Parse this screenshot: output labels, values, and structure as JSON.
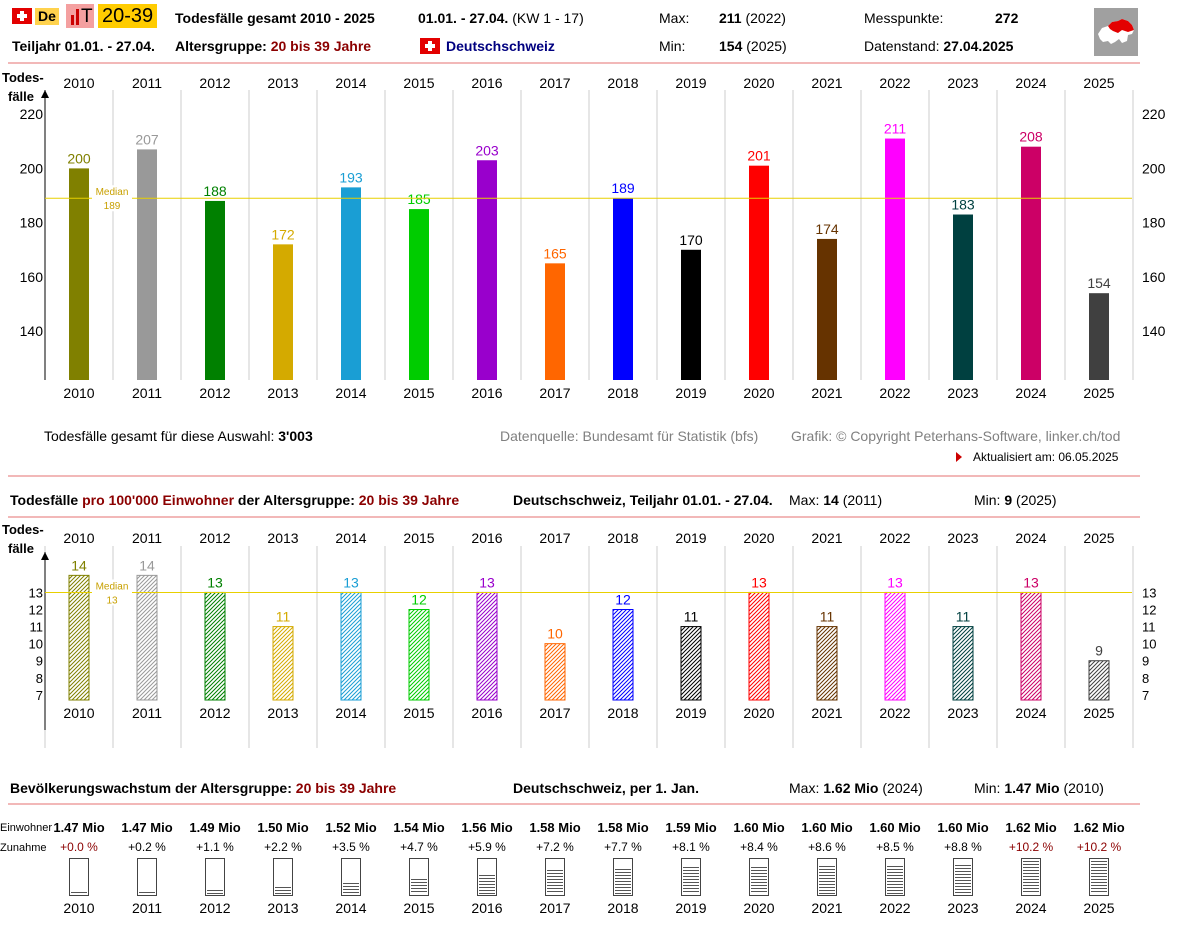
{
  "header": {
    "lang": "De",
    "age_badge": "20-39",
    "title": "Todesfälle gesamt 2010 - 2025",
    "period": "01.01. - 27.04.",
    "kw": "(KW 1 - 17)",
    "max_label": "Max:",
    "max_value": "211",
    "max_year": "(2022)",
    "messpunkte_label": "Messpunkte:",
    "messpunkte_value": "272",
    "teiljahr": "Teiljahr 01.01. - 27.04.",
    "altersgruppe_label": "Altersgruppe:",
    "altersgruppe_value": "20 bis 39 Jahre",
    "region": "Deutschschweiz",
    "min_label": "Min:",
    "min_value": "154",
    "min_year": "(2025)",
    "datenstand_label": "Datenstand:",
    "datenstand_value": "27.04.2025"
  },
  "footer1": {
    "total_label": "Todesfälle gesamt für diese Auswahl:",
    "total_value": "3'003",
    "source": "Datenquelle: Bundesamt für Statistik (bfs)",
    "copyright": "Grafik: © Copyright Peterhans-Software, linker.ch/tod",
    "updated": "Aktualisiert am: 06.05.2025"
  },
  "section2": {
    "t1": "Todesfälle",
    "t2": "pro 100'000 Einwohner",
    "t3": "der Altersgruppe:",
    "t4": "20 bis 39 Jahre",
    "region": "Deutschschweiz, Teiljahr 01.01. - 27.04.",
    "max_label": "Max:",
    "max_value": "14",
    "max_year": "(2011)",
    "min_label": "Min:",
    "min_value": "9",
    "min_year": "(2025)"
  },
  "section3": {
    "t1": "Bevölkerungswachstum der Altersgruppe:",
    "t2": "20 bis 39 Jahre",
    "region": "Deutschschweiz, per 1. Jan.",
    "max_label": "Max:",
    "max_value": "1.62 Mio",
    "max_year": "(2024)",
    "min_label": "Min:",
    "min_value": "1.47 Mio",
    "min_year": "(2010)",
    "row_label_pop": "Einwohner",
    "row_label_growth": "Zunahme"
  },
  "chart_data": [
    {
      "type": "bar",
      "ylabel": "Todes-\nfälle",
      "categories": [
        "2010",
        "2011",
        "2012",
        "2013",
        "2014",
        "2015",
        "2016",
        "2017",
        "2018",
        "2019",
        "2020",
        "2021",
        "2022",
        "2023",
        "2024",
        "2025"
      ],
      "values": [
        200,
        207,
        188,
        172,
        193,
        185,
        203,
        165,
        189,
        170,
        201,
        174,
        211,
        183,
        208,
        154
      ],
      "colors": [
        "#808000",
        "#999999",
        "#008000",
        "#d4aa00",
        "#1a9ed4",
        "#00cc00",
        "#9900cc",
        "#ff6600",
        "#0000ff",
        "#000000",
        "#ff0000",
        "#663300",
        "#ff00ff",
        "#004040",
        "#cc0066",
        "#404040"
      ],
      "yticks": [
        140,
        160,
        180,
        200,
        220
      ],
      "ylim": [
        122,
        230
      ],
      "median": 189,
      "median_label": "Median"
    },
    {
      "type": "bar",
      "ylabel": "Todes-\nfälle",
      "categories": [
        "2010",
        "2011",
        "2012",
        "2013",
        "2014",
        "2015",
        "2016",
        "2017",
        "2018",
        "2019",
        "2020",
        "2021",
        "2022",
        "2023",
        "2024",
        "2025"
      ],
      "values": [
        14,
        14,
        13,
        11,
        13,
        12,
        13,
        10,
        12,
        11,
        13,
        11,
        13,
        11,
        13,
        9
      ],
      "colors": [
        "#808000",
        "#999999",
        "#008000",
        "#d4aa00",
        "#1a9ed4",
        "#00cc00",
        "#9900cc",
        "#ff6600",
        "#0000ff",
        "#000000",
        "#ff0000",
        "#663300",
        "#ff00ff",
        "#004040",
        "#cc0066",
        "#404040"
      ],
      "yticks": [
        7,
        8,
        9,
        10,
        11,
        12,
        13
      ],
      "ylim": [
        6.7,
        14.9
      ],
      "median": 13,
      "median_label": "Median"
    },
    {
      "type": "table",
      "categories": [
        "2010",
        "2011",
        "2012",
        "2013",
        "2014",
        "2015",
        "2016",
        "2017",
        "2018",
        "2019",
        "2020",
        "2021",
        "2022",
        "2023",
        "2024",
        "2025"
      ],
      "population": [
        "1.47 Mio",
        "1.47 Mio",
        "1.49 Mio",
        "1.50 Mio",
        "1.52 Mio",
        "1.54 Mio",
        "1.56 Mio",
        "1.58 Mio",
        "1.58 Mio",
        "1.59 Mio",
        "1.60 Mio",
        "1.60 Mio",
        "1.60 Mio",
        "1.60 Mio",
        "1.62 Mio",
        "1.62 Mio"
      ],
      "growth": [
        "+0.0 %",
        "+0.2 %",
        "+1.1 %",
        "+2.2 %",
        "+3.5 %",
        "+4.7 %",
        "+5.9 %",
        "+7.2 %",
        "+7.7 %",
        "+8.1 %",
        "+8.4 %",
        "+8.6 %",
        "+8.5 %",
        "+8.8 %",
        "+10.2 %",
        "+10.2 %"
      ],
      "growth_values": [
        0.0,
        0.2,
        1.1,
        2.2,
        3.5,
        4.7,
        5.9,
        7.2,
        7.7,
        8.1,
        8.4,
        8.6,
        8.5,
        8.8,
        10.2,
        10.2
      ],
      "growth_highlight": [
        true,
        false,
        false,
        false,
        false,
        false,
        false,
        false,
        false,
        false,
        false,
        false,
        false,
        false,
        true,
        true
      ]
    }
  ]
}
